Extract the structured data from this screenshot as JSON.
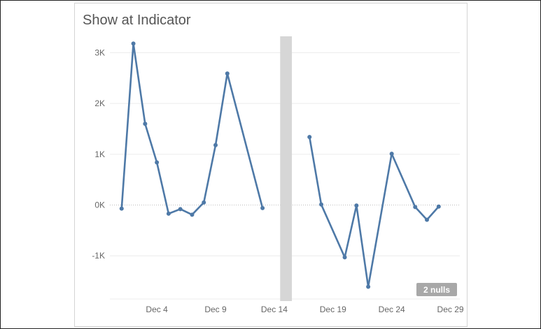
{
  "title": "Show at Indicator",
  "colors": {
    "series": "#4e79a7",
    "gap_band": "#d6d6d6",
    "grid": "#ececec",
    "zero_line": "#bdbdbd",
    "badge": "#a8a8a8"
  },
  "nulls_badge": "2 nulls",
  "chart_data": {
    "type": "line",
    "title": "Show at Indicator",
    "xlabel": "",
    "ylabel": "",
    "x_unit": "day of December",
    "xlim": [
      0,
      29.8
    ],
    "ylim": [
      -1850,
      3350
    ],
    "y_ticks": [
      {
        "value": 3000,
        "label": "3K"
      },
      {
        "value": 2000,
        "label": "2K"
      },
      {
        "value": 1000,
        "label": "1K"
      },
      {
        "value": 0,
        "label": "0K"
      },
      {
        "value": -1000,
        "label": "-1K"
      }
    ],
    "x_ticks": [
      {
        "value": 4,
        "label": "Dec 4"
      },
      {
        "value": 9,
        "label": "Dec 9"
      },
      {
        "value": 14,
        "label": "Dec 14"
      },
      {
        "value": 19,
        "label": "Dec 19"
      },
      {
        "value": 24,
        "label": "Dec 24"
      },
      {
        "value": 29,
        "label": "Dec 29"
      }
    ],
    "grid": true,
    "null_days": [
      15,
      16
    ],
    "null_count": 2,
    "series": [
      {
        "values": [
          {
            "x": 1,
            "y": -70
          },
          {
            "x": 2,
            "y": 3180
          },
          {
            "x": 3,
            "y": 1600
          },
          {
            "x": 4,
            "y": 840
          },
          {
            "x": 5,
            "y": -170
          },
          {
            "x": 6,
            "y": -80
          },
          {
            "x": 7,
            "y": -190
          },
          {
            "x": 8,
            "y": 50
          },
          {
            "x": 9,
            "y": 1180
          },
          {
            "x": 10,
            "y": 2590
          },
          {
            "x": 13,
            "y": -60
          },
          {
            "x": 17,
            "y": 1340
          },
          {
            "x": 18,
            "y": 10
          },
          {
            "x": 20,
            "y": -1030
          },
          {
            "x": 21,
            "y": -10
          },
          {
            "x": 22,
            "y": -1610
          },
          {
            "x": 24,
            "y": 1010
          },
          {
            "x": 26,
            "y": -40
          },
          {
            "x": 27,
            "y": -290
          },
          {
            "x": 28,
            "y": -30
          }
        ]
      }
    ]
  }
}
